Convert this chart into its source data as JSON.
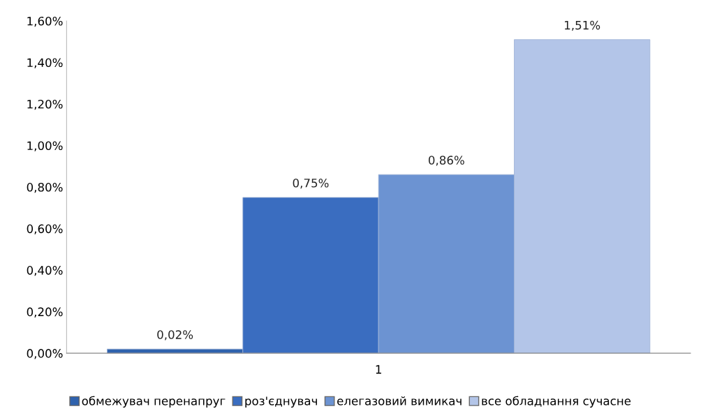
{
  "chart_data": {
    "type": "bar",
    "categories": [
      "1"
    ],
    "series": [
      {
        "name": "обмежувач перенапруг",
        "color": "#2f62ad",
        "values": [
          0.02
        ],
        "value_labels": [
          "0,02%"
        ]
      },
      {
        "name": "роз'єднувач",
        "color": "#3a6dc0",
        "values": [
          0.75
        ],
        "value_labels": [
          "0,75%"
        ]
      },
      {
        "name": "елегазовий вимикач",
        "color": "#6c93d2",
        "values": [
          0.86
        ],
        "value_labels": [
          "0,86%"
        ]
      },
      {
        "name": "все обладнання сучасне",
        "color": "#b3c5e8",
        "values": [
          1.51
        ],
        "value_labels": [
          "1,51%"
        ]
      }
    ],
    "ylim": [
      0,
      1.6
    ],
    "yticks": [
      {
        "value": 0,
        "label": "0,00%"
      },
      {
        "value": 0.2,
        "label": "0,20%"
      },
      {
        "value": 0.4,
        "label": "0,40%"
      },
      {
        "value": 0.6,
        "label": "0,60%"
      },
      {
        "value": 0.8,
        "label": "0,80%"
      },
      {
        "value": 1.0,
        "label": "1,00%"
      },
      {
        "value": 1.2,
        "label": "1,20%"
      },
      {
        "value": 1.4,
        "label": "1,40%"
      },
      {
        "value": 1.6,
        "label": "1,60%"
      }
    ],
    "grid": false,
    "legend": "bottom"
  }
}
